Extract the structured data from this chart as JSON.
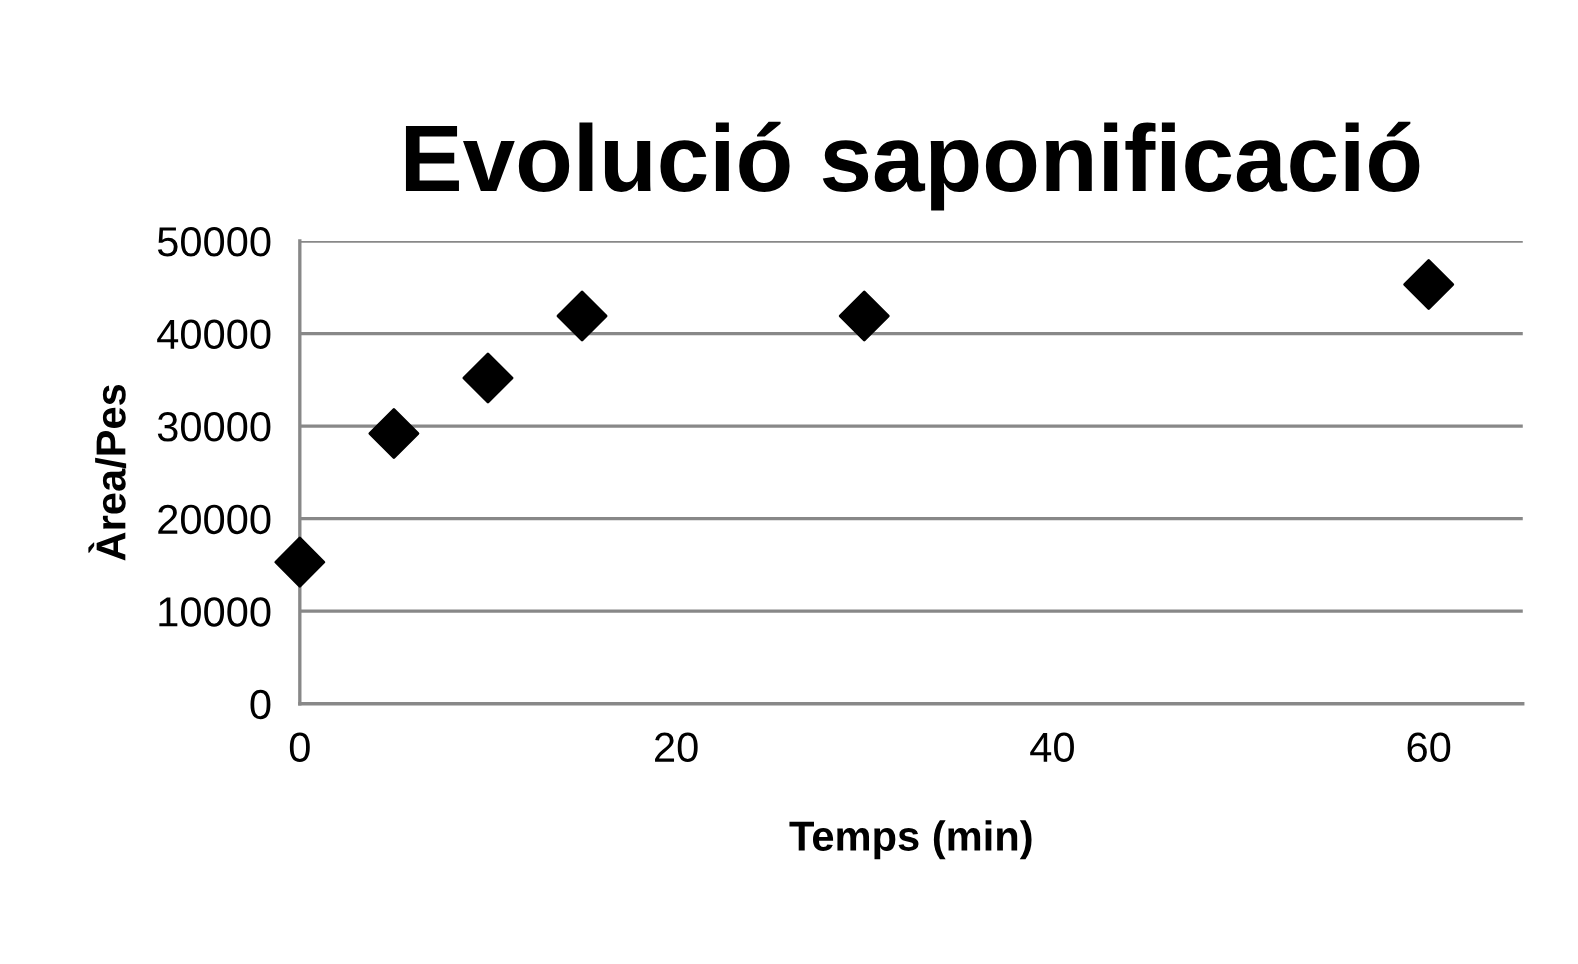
{
  "chart_data": {
    "type": "scatter",
    "title": "Evolució saponificació",
    "xlabel": "Temps (min)",
    "ylabel": "Àrea/Pes",
    "x": [
      0,
      5,
      10,
      15,
      30,
      60
    ],
    "series": [
      {
        "color": "#000000",
        "values": [
          15300,
          29200,
          35200,
          41900,
          41900,
          45300
        ]
      }
    ],
    "xlim": [
      0,
      65
    ],
    "xticks": [
      0,
      20,
      40,
      60
    ],
    "ylim": [
      0,
      50000
    ],
    "yticks": [
      0,
      10000,
      20000,
      30000,
      40000,
      50000
    ],
    "grid": "y",
    "marker": "diamond"
  }
}
